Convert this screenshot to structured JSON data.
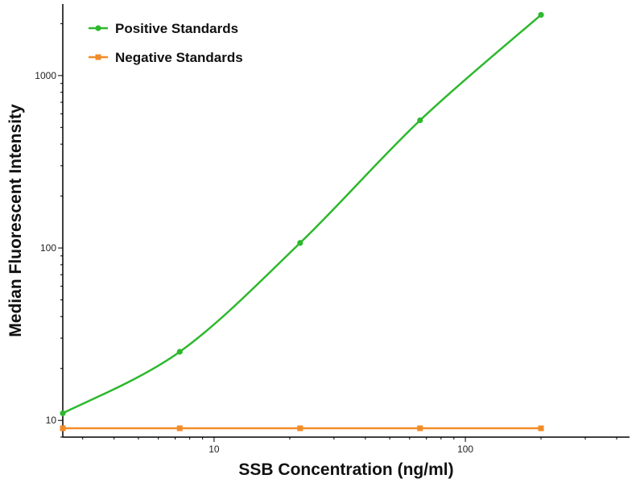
{
  "chart_data": {
    "type": "line",
    "xlabel": "SSB Concentration (ng/ml)",
    "ylabel": "Median Fluorescent Intensity",
    "xscale": "log",
    "yscale": "log",
    "xlim": [
      2.5,
      450
    ],
    "ylim": [
      8,
      2600
    ],
    "x_ticks": [
      10,
      100
    ],
    "x_tick_labels": [
      "10",
      "100"
    ],
    "y_ticks": [
      10,
      100,
      1000
    ],
    "y_tick_labels": [
      "10",
      "100",
      "1000"
    ],
    "legend_position": "top-left",
    "grid": false,
    "series": [
      {
        "name": "Positive Standards",
        "color": "#2db82d",
        "marker": "circle",
        "x": [
          2.5,
          7.3,
          22,
          66,
          200
        ],
        "y": [
          11,
          25,
          107,
          550,
          2250
        ]
      },
      {
        "name": "Negative Standards",
        "color": "#f28c28",
        "marker": "square",
        "x": [
          2.5,
          7.3,
          22,
          66,
          200
        ],
        "y": [
          9,
          9,
          9,
          9,
          9
        ]
      }
    ]
  }
}
